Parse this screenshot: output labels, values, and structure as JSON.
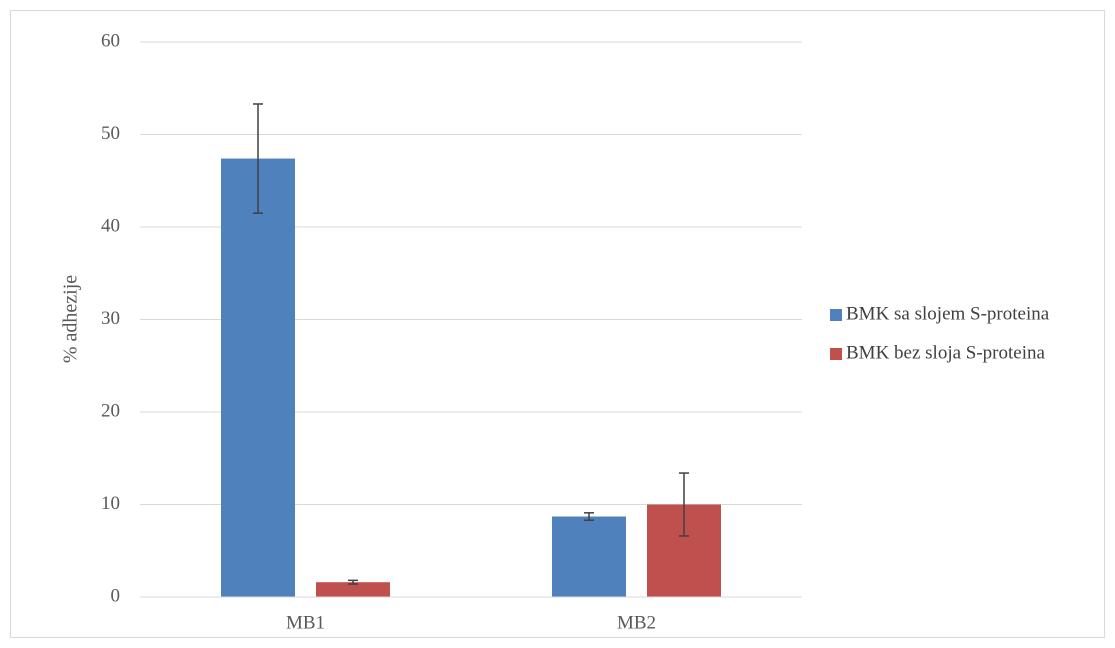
{
  "chart_data": {
    "type": "bar",
    "title": "",
    "xlabel": "",
    "ylabel": "% adhezije",
    "ylim": [
      0,
      60
    ],
    "yticks": [
      0,
      10,
      20,
      30,
      40,
      50,
      60
    ],
    "categories": [
      "MB1",
      "MB2"
    ],
    "series": [
      {
        "name": "BMK sa slojem S-proteina",
        "color": "#4F81BD",
        "values": [
          47.4,
          8.7
        ],
        "error": [
          5.9,
          0.4
        ]
      },
      {
        "name": "BMK bez sloja S-proteina",
        "color": "#C0504D",
        "values": [
          1.6,
          10.0
        ],
        "error": [
          0.2,
          3.4
        ]
      }
    ],
    "grid": true,
    "legend_position": "right"
  }
}
